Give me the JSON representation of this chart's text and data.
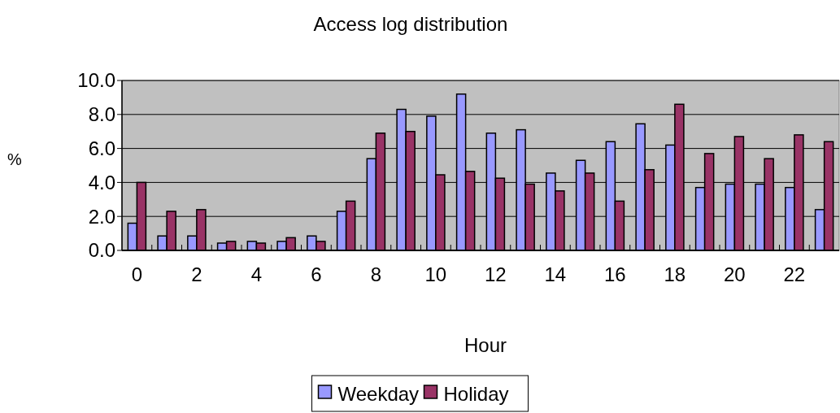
{
  "chart_data": {
    "type": "bar",
    "title": "Access log distribution",
    "xlabel": "Hour",
    "ylabel": "%",
    "categories": [
      "0",
      null,
      "2",
      null,
      "4",
      null,
      "6",
      null,
      "8",
      null,
      "10",
      null,
      "12",
      null,
      "14",
      null,
      "16",
      null,
      "18",
      null,
      "20",
      null,
      "22",
      null
    ],
    "series": [
      {
        "name": "Weekday",
        "color": "#9999ff",
        "values": [
          1.6,
          0.85,
          0.85,
          0.43,
          0.53,
          0.53,
          0.85,
          2.3,
          5.4,
          8.3,
          7.9,
          9.2,
          6.9,
          7.1,
          4.55,
          5.3,
          6.4,
          7.45,
          6.2,
          3.7,
          3.9,
          3.9,
          3.7,
          2.4
        ]
      },
      {
        "name": "Holiday",
        "color": "#993366",
        "values": [
          4.0,
          2.3,
          2.4,
          0.53,
          0.43,
          0.75,
          0.53,
          2.9,
          6.9,
          7.0,
          4.45,
          4.65,
          4.25,
          3.9,
          3.5,
          4.55,
          2.9,
          4.75,
          8.6,
          5.7,
          6.7,
          5.4,
          6.8,
          6.4
        ]
      }
    ],
    "ylim": [
      0,
      10
    ],
    "yticks": [
      {
        "value": 0,
        "label": "0.0"
      },
      {
        "value": 2,
        "label": "2.0"
      },
      {
        "value": 4,
        "label": "4.0"
      },
      {
        "value": 6,
        "label": "6.0"
      },
      {
        "value": 8,
        "label": "8.0"
      },
      {
        "value": 10,
        "label": "10.0"
      }
    ],
    "grid": "y",
    "legend": "bottom"
  }
}
